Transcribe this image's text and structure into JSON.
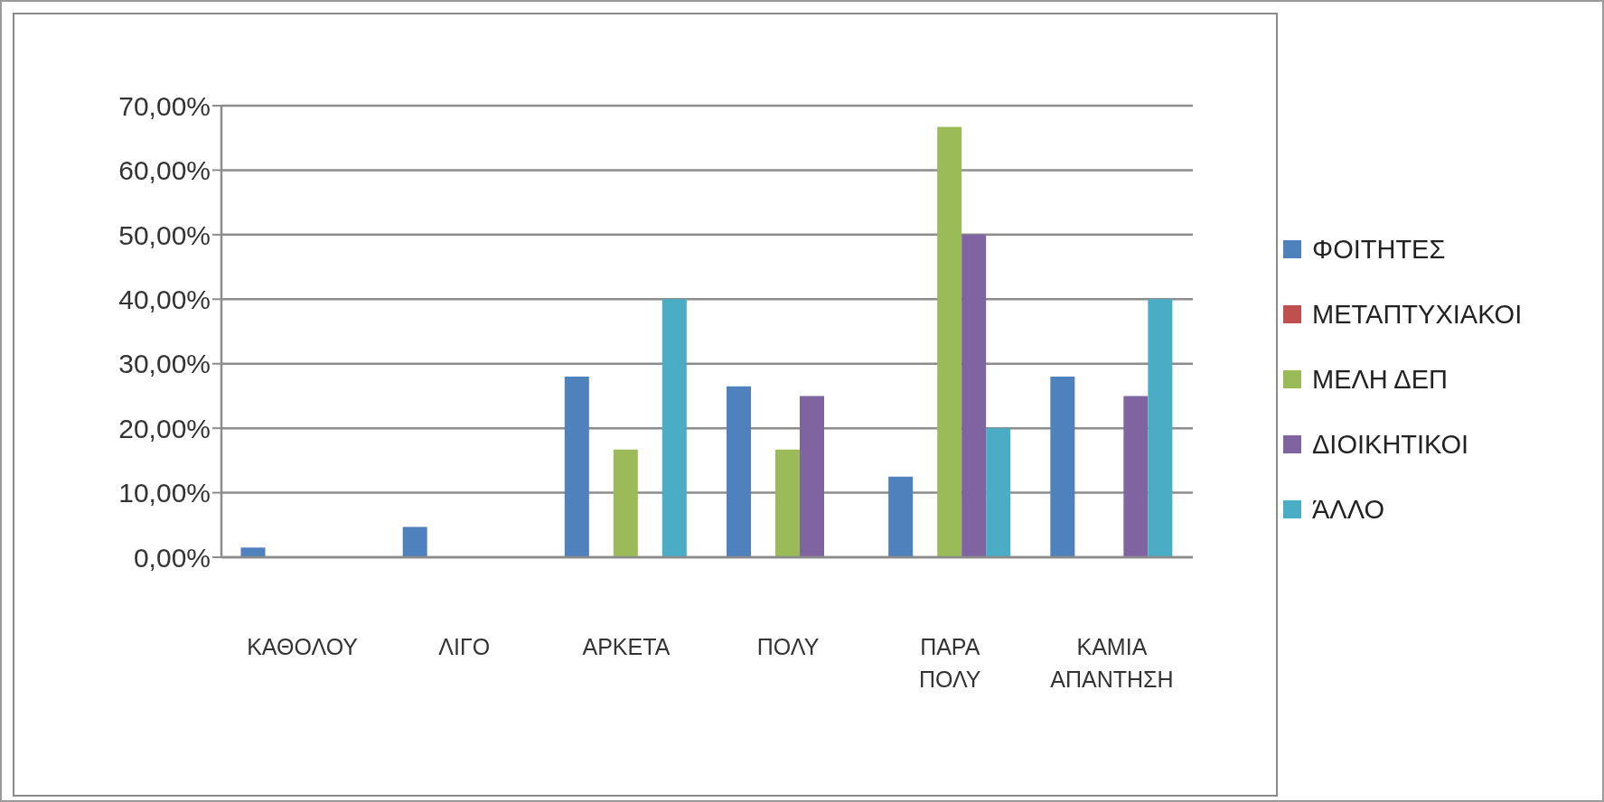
{
  "chart_data": {
    "type": "bar",
    "categories": [
      "ΚΑΘΟΛΟΥ",
      "ΛΙΓΟ",
      "ΑΡΚΕΤΑ",
      "ΠΟΛΥ",
      "ΠΑΡΑ ΠΟΛΥ",
      "ΚΑΜΙΑ ΑΠΑΝΤΗΣΗ"
    ],
    "series": [
      {
        "name": "ΦΟΙΤΗΤΕΣ",
        "color": "#4f81bd",
        "values": [
          1.5,
          4.7,
          28,
          26.5,
          12.5,
          28
        ]
      },
      {
        "name": "ΜΕΤΑΠΤΥΧΙΑΚΟΙ",
        "color": "#c0504d",
        "values": [
          0,
          0,
          0,
          0,
          0,
          0
        ]
      },
      {
        "name": "ΜΕΛΗ ΔΕΠ",
        "color": "#9bbb59",
        "values": [
          0,
          0,
          16.7,
          16.7,
          66.7,
          0
        ]
      },
      {
        "name": "ΔΙΟΙΚΗΤΙΚΟΙ",
        "color": "#8064a2",
        "values": [
          0,
          0,
          0,
          25,
          50,
          25
        ]
      },
      {
        "name": "ΆΛΛΟ",
        "color": "#4bacc6",
        "values": [
          0,
          0,
          40,
          0,
          20,
          40
        ]
      }
    ],
    "ylim": [
      0,
      70
    ],
    "yticks": [
      {
        "value": 0,
        "label": "0,00%"
      },
      {
        "value": 10,
        "label": "10,00%"
      },
      {
        "value": 20,
        "label": "20,00%"
      },
      {
        "value": 30,
        "label": "30,00%"
      },
      {
        "value": 40,
        "label": "40,00%"
      },
      {
        "value": 50,
        "label": "50,00%"
      },
      {
        "value": 60,
        "label": "60,00%"
      },
      {
        "value": 70,
        "label": "70,00%"
      }
    ],
    "grid": "y",
    "legend": "right"
  }
}
